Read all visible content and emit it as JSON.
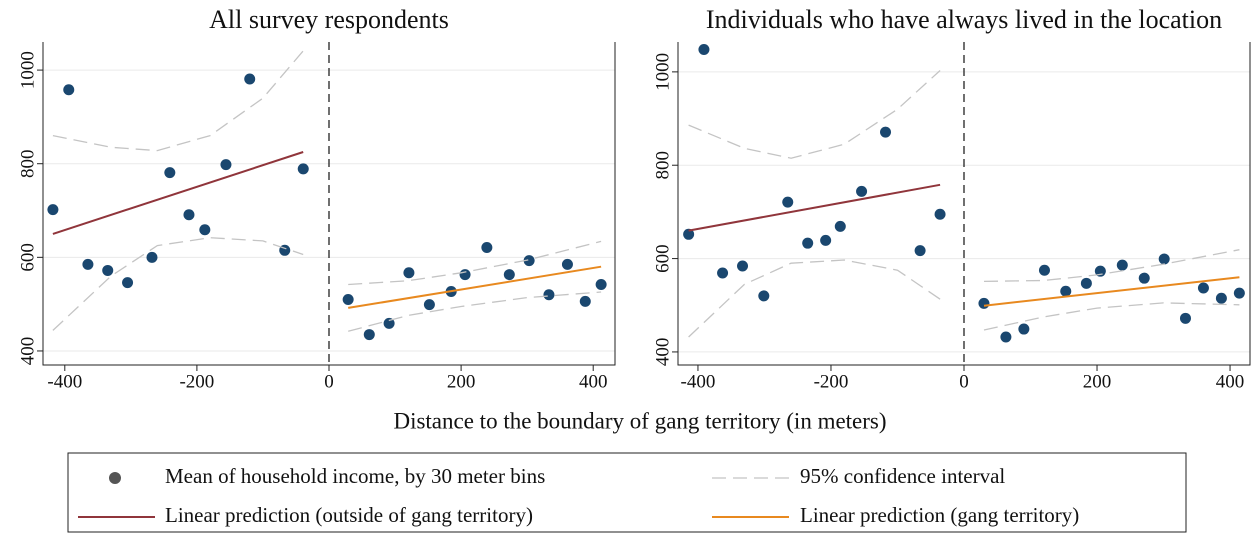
{
  "chart_data": [
    {
      "type": "scatter",
      "title": "All survey respondents",
      "xlim": [
        -433,
        433
      ],
      "ylim": [
        370,
        1060
      ],
      "xticks": [
        -400,
        -200,
        0,
        200,
        400
      ],
      "yticks": [
        400,
        600,
        800,
        1000
      ],
      "grid": true,
      "vline": 0,
      "series": [
        {
          "name": "Mean of household income, by 30 meter bins",
          "style": "markers",
          "color": "#1a476f",
          "x": [
            -418,
            -394,
            -365,
            -335,
            -305,
            -268,
            -241,
            -212,
            -188,
            -156,
            -120,
            -67,
            -39,
            29,
            61,
            91,
            121,
            152,
            185,
            206,
            239,
            273,
            303,
            333,
            361,
            388,
            412
          ],
          "values": [
            702,
            958,
            585,
            572,
            546,
            600,
            781,
            691,
            659,
            798,
            981,
            615,
            789,
            510,
            435,
            459,
            567,
            499,
            527,
            563,
            621,
            563,
            593,
            520,
            585,
            506,
            542
          ]
        },
        {
          "name": "Linear prediction (outside of gang territory)",
          "style": "line",
          "color": "#90353b",
          "x": [
            -418,
            -39
          ],
          "values": [
            650,
            825
          ]
        },
        {
          "name": "Linear prediction (gang territory)",
          "style": "line",
          "color": "#e8891f",
          "x": [
            29,
            412
          ],
          "values": [
            492,
            580
          ]
        },
        {
          "name": "95% confidence interval",
          "style": "band",
          "color": "#c4c4c4",
          "x": [
            -418,
            -330,
            -260,
            -180,
            -100,
            -39
          ],
          "values": [
            860,
            835,
            828,
            860,
            940,
            1041
          ],
          "lower": [
            444,
            560,
            625,
            642,
            635,
            606
          ]
        },
        {
          "style": "band",
          "color": "#c4c4c4",
          "x": [
            29,
            120,
            200,
            300,
            412
          ],
          "values": [
            542,
            550,
            567,
            594,
            634
          ],
          "lower": [
            442,
            476,
            495,
            514,
            526
          ]
        }
      ]
    },
    {
      "type": "scatter",
      "title": "Individuals who have always lived in the location",
      "xlim": [
        -430,
        430
      ],
      "ylim": [
        372,
        1064
      ],
      "xticks": [
        -400,
        -200,
        0,
        200,
        400
      ],
      "yticks": [
        400,
        600,
        800,
        1000
      ],
      "grid": true,
      "vline": 0,
      "series": [
        {
          "style": "markers",
          "color": "#1a476f",
          "x": [
            -414,
            -391,
            -363,
            -333,
            -301,
            -265,
            -235,
            -208,
            -186,
            -154,
            -118,
            -66,
            -36,
            30,
            63,
            90,
            121,
            153,
            184,
            205,
            238,
            271,
            301,
            333,
            360,
            387,
            414
          ],
          "values": [
            652,
            1048,
            569,
            584,
            520,
            721,
            633,
            639,
            669,
            744,
            871,
            617,
            695,
            504,
            432,
            449,
            575,
            530,
            547,
            573,
            586,
            558,
            599,
            472,
            537,
            515,
            526
          ]
        },
        {
          "style": "line",
          "color": "#90353b",
          "x": [
            -414,
            -36
          ],
          "values": [
            660,
            758
          ]
        },
        {
          "style": "line",
          "color": "#e8891f",
          "x": [
            30,
            414
          ],
          "values": [
            499,
            560
          ]
        },
        {
          "style": "band",
          "color": "#c4c4c4",
          "x": [
            -414,
            -330,
            -260,
            -180,
            -100,
            -36
          ],
          "values": [
            886,
            836,
            815,
            845,
            920,
            1003
          ],
          "lower": [
            432,
            545,
            590,
            597,
            575,
            513
          ]
        },
        {
          "style": "band",
          "color": "#c4c4c4",
          "x": [
            30,
            120,
            200,
            300,
            414
          ],
          "values": [
            551,
            553,
            565,
            588,
            619
          ],
          "lower": [
            447,
            475,
            494,
            505,
            501
          ]
        }
      ]
    }
  ],
  "xlabel": "Distance to the boundary of gang territory (in meters)"
}
